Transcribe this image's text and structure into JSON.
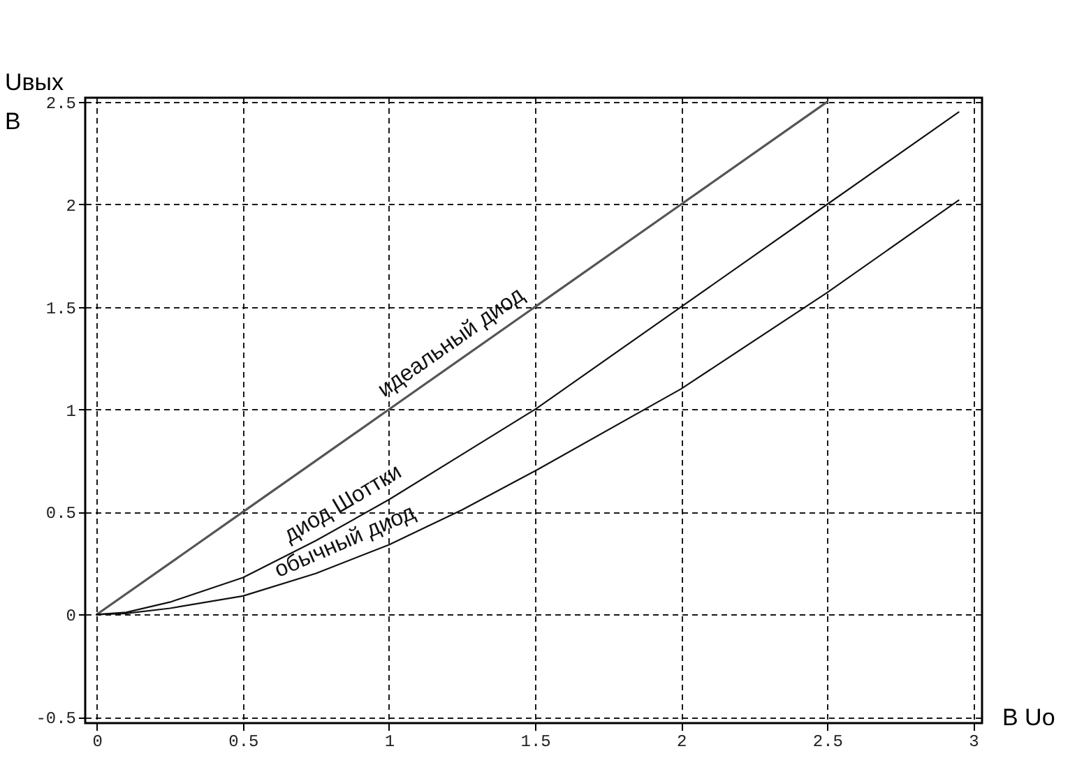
{
  "chart_data": {
    "type": "line",
    "xlabel": "B  Uo",
    "ylabel": "Uвых\nB",
    "xlim": [
      -0.04,
      3.03
    ],
    "ylim": [
      -0.53,
      2.52
    ],
    "xticks": [
      0,
      0.5,
      1,
      1.5,
      2,
      2.5,
      3
    ],
    "yticks": [
      -0.5,
      0,
      0.5,
      1,
      1.5,
      2,
      2.5
    ],
    "grid": true,
    "line_style": "solid",
    "marker": "none",
    "series": [
      {
        "name": "идеальный диод",
        "color": "#555555",
        "x": [
          0,
          0.5,
          1,
          1.5,
          2,
          2.5
        ],
        "values": [
          0,
          0.5,
          1,
          1.5,
          2,
          2.5
        ]
      },
      {
        "name": "диод Шоттки",
        "color": "#111111",
        "x": [
          0,
          0.1,
          0.25,
          0.5,
          0.75,
          1,
          1.25,
          1.5,
          2,
          2.5,
          2.95
        ],
        "values": [
          0,
          0.01,
          0.06,
          0.18,
          0.36,
          0.56,
          0.78,
          1.0,
          1.5,
          2.0,
          2.45
        ]
      },
      {
        "name": "обычный диод",
        "color": "#111111",
        "x": [
          0,
          0.1,
          0.25,
          0.5,
          0.75,
          1,
          1.25,
          1.5,
          2,
          2.5,
          2.95
        ],
        "values": [
          0,
          0.005,
          0.03,
          0.09,
          0.2,
          0.34,
          0.51,
          0.7,
          1.1,
          1.57,
          2.02
        ]
      }
    ]
  }
}
